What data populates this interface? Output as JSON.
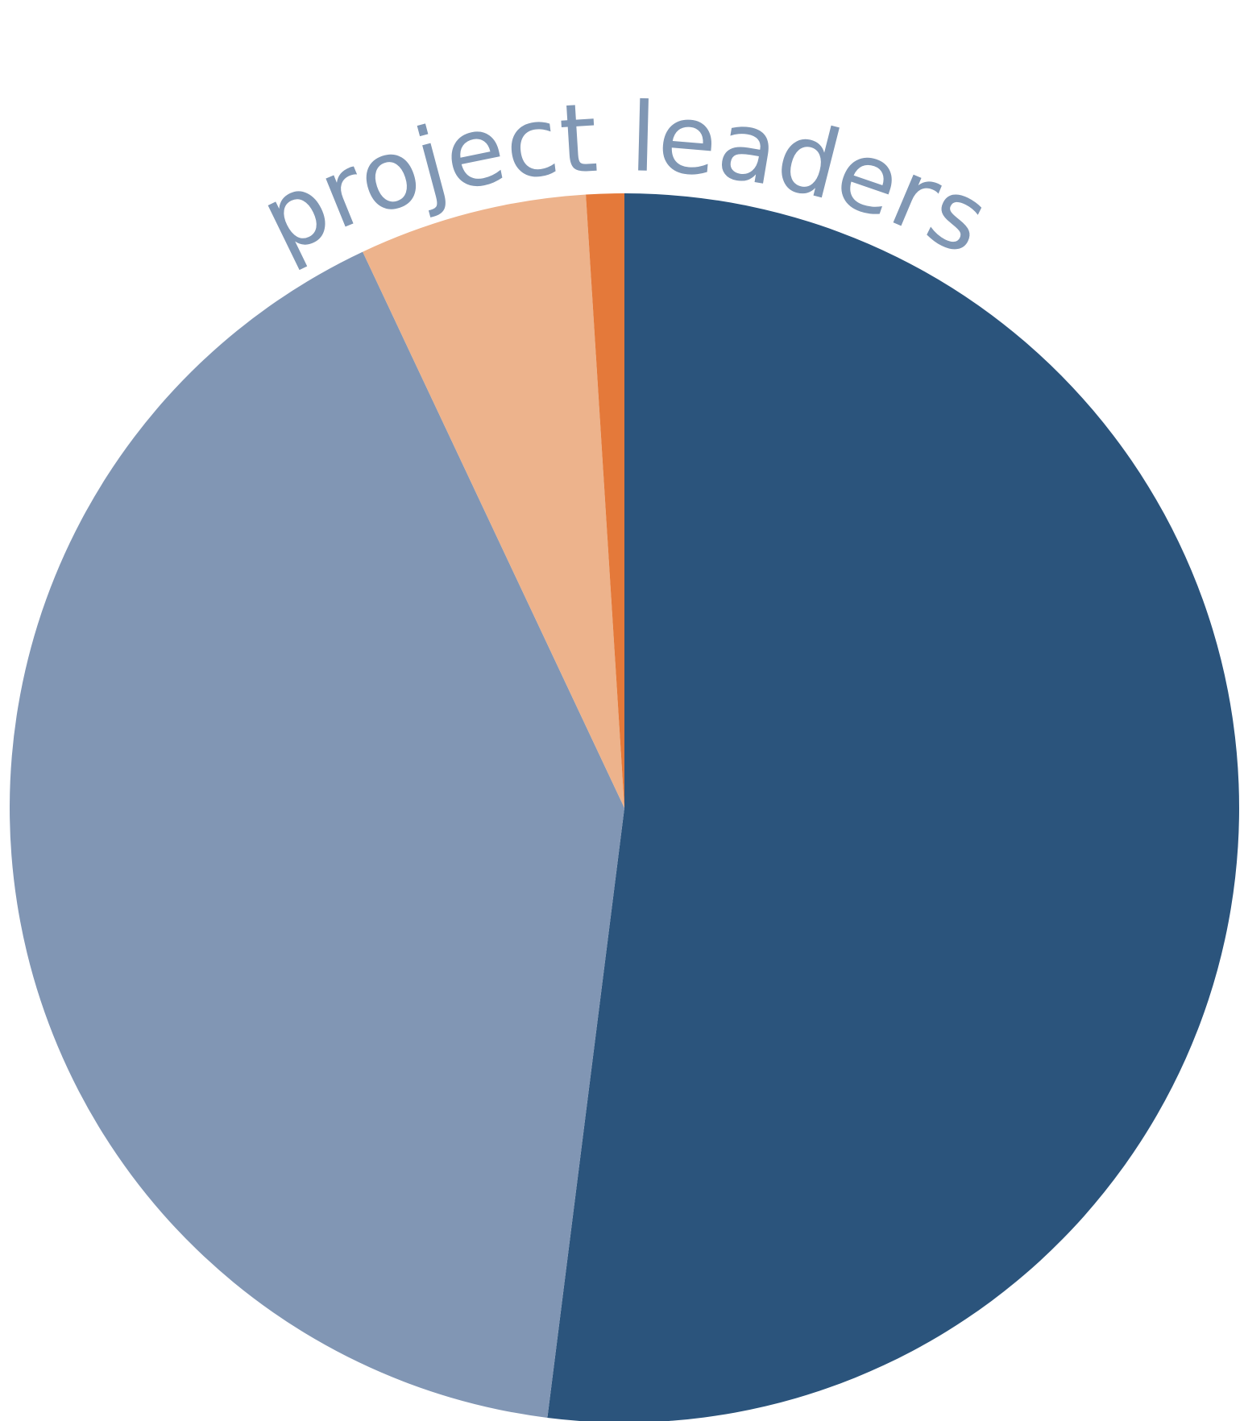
{
  "chart_data": {
    "type": "pie",
    "title": "project leaders",
    "values": [
      52,
      41,
      6,
      1
    ],
    "colors": [
      "#2b547c",
      "#8196b4",
      "#edb38c",
      "#e4793a"
    ]
  }
}
